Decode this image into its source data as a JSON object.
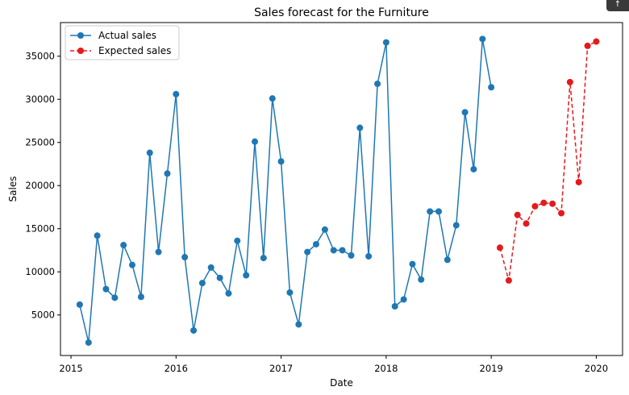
{
  "chart_data": {
    "type": "line",
    "title": "Sales forecast for the  Furniture",
    "xlabel": "Date",
    "ylabel": "Sales",
    "xlim": [
      2014.9,
      2020.25
    ],
    "ylim": [
      300,
      38900
    ],
    "xticks": [
      2015,
      2016,
      2017,
      2018,
      2019,
      2020
    ],
    "yticks": [
      5000,
      10000,
      15000,
      20000,
      25000,
      30000,
      35000
    ],
    "grid": false,
    "legend_position": "top-left",
    "series": [
      {
        "name": "Actual sales",
        "color": "#1f77b4",
        "linestyle": "solid",
        "marker": "circle",
        "x": [
          2015.083,
          2015.167,
          2015.25,
          2015.333,
          2015.417,
          2015.5,
          2015.583,
          2015.667,
          2015.75,
          2015.833,
          2015.917,
          2016.0,
          2016.083,
          2016.167,
          2016.25,
          2016.333,
          2016.417,
          2016.5,
          2016.583,
          2016.667,
          2016.75,
          2016.833,
          2016.917,
          2017.0,
          2017.083,
          2017.167,
          2017.25,
          2017.333,
          2017.417,
          2017.5,
          2017.583,
          2017.667,
          2017.75,
          2017.833,
          2017.917,
          2018.0,
          2018.083,
          2018.167,
          2018.25,
          2018.333,
          2018.417,
          2018.5,
          2018.583,
          2018.667,
          2018.75,
          2018.833,
          2018.917,
          2019.0
        ],
        "y": [
          6200,
          1800,
          14200,
          8000,
          7000,
          13100,
          10800,
          7100,
          23800,
          12300,
          21400,
          30600,
          11700,
          3200,
          8700,
          10500,
          9300,
          7500,
          13600,
          9600,
          25100,
          11600,
          30100,
          22800,
          7600,
          3900,
          12300,
          13200,
          14900,
          12500,
          12500,
          11900,
          26700,
          11800,
          31800,
          36600,
          6000,
          6800,
          10900,
          9100,
          17000,
          17000,
          11400,
          15400,
          28500,
          21900,
          37000,
          31400
        ]
      },
      {
        "name": "Expected sales",
        "color": "#e41a1c",
        "linestyle": "dashed",
        "marker": "circle",
        "x": [
          2019.083,
          2019.167,
          2019.25,
          2019.333,
          2019.417,
          2019.5,
          2019.583,
          2019.667,
          2019.75,
          2019.833,
          2019.917,
          2020.0
        ],
        "y": [
          12800,
          9000,
          16600,
          15600,
          17600,
          18000,
          17900,
          16800,
          32000,
          20400,
          36200,
          36700
        ]
      }
    ]
  },
  "badge_label": "↑"
}
